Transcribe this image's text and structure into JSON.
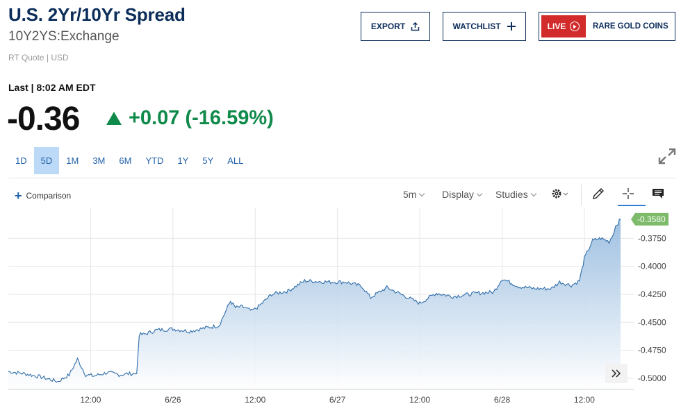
{
  "header": {
    "title": "U.S. 2Yr/10Yr Spread",
    "symbol": "10Y2YS:Exchange",
    "quote_type": "RT Quote | USD"
  },
  "buttons": {
    "export": "EXPORT",
    "watchlist": "WATCHLIST",
    "live": "LIVE",
    "live_promo": "RARE GOLD COINS"
  },
  "quote": {
    "last_label": "Last | 8:02 AM EDT",
    "price": "-0.36",
    "change": "+0.07 (-16.59%)",
    "change_color": "#0f8a4a",
    "direction_icon": "triangle-up-icon"
  },
  "ranges": [
    "1D",
    "5D",
    "1M",
    "3M",
    "6M",
    "YTD",
    "1Y",
    "5Y",
    "ALL"
  ],
  "active_range": "5D",
  "toolbar": {
    "comparison": "Comparison",
    "interval": "5m",
    "display": "Display",
    "studies": "Studies",
    "icons": [
      "settings-gear-icon",
      "draw-pencil-icon",
      "crosshair-icon",
      "comment-icon"
    ]
  },
  "chart_data": {
    "type": "area",
    "ylim": [
      -0.51,
      -0.3475
    ],
    "yticks": [
      "-0.3750",
      "-0.4000",
      "-0.4250",
      "-0.4500",
      "-0.4750",
      "-0.5000"
    ],
    "ytick_values": [
      -0.375,
      -0.4,
      -0.425,
      -0.45,
      -0.475,
      -0.5
    ],
    "xticks": [
      "12:00",
      "6/26",
      "12:00",
      "6/27",
      "12:00",
      "6/28",
      "12:00"
    ],
    "xtick_values": [
      0.5,
      1.0,
      1.5,
      2.0,
      2.5,
      3.0,
      3.5
    ],
    "x_unit": "days since start of visible window",
    "current_label": "-0.3580",
    "line_color": "#2f6da8",
    "label_color": "#7dbb6a",
    "x": [
      0.0,
      0.1,
      0.2,
      0.3,
      0.37,
      0.42,
      0.47,
      0.52,
      0.6,
      0.68,
      0.72,
      0.78,
      0.795,
      0.82,
      0.9,
      1.0,
      1.1,
      1.2,
      1.28,
      1.35,
      1.38,
      1.42,
      1.48,
      1.52,
      1.6,
      1.7,
      1.8,
      1.95,
      2.05,
      2.15,
      2.2,
      2.3,
      2.4,
      2.5,
      2.6,
      2.7,
      2.85,
      2.95,
      3.0,
      3.1,
      3.2,
      3.3,
      3.35,
      3.42,
      3.47,
      3.5,
      3.55,
      3.6,
      3.65,
      3.67,
      3.69,
      3.72
    ],
    "y": [
      -0.494,
      -0.496,
      -0.499,
      -0.503,
      -0.497,
      -0.483,
      -0.497,
      -0.498,
      -0.495,
      -0.497,
      -0.496,
      -0.496,
      -0.461,
      -0.461,
      -0.457,
      -0.456,
      -0.458,
      -0.455,
      -0.453,
      -0.431,
      -0.437,
      -0.436,
      -0.44,
      -0.436,
      -0.425,
      -0.422,
      -0.413,
      -0.414,
      -0.414,
      -0.418,
      -0.428,
      -0.419,
      -0.426,
      -0.433,
      -0.424,
      -0.427,
      -0.424,
      -0.423,
      -0.411,
      -0.418,
      -0.42,
      -0.42,
      -0.414,
      -0.417,
      -0.413,
      -0.393,
      -0.377,
      -0.375,
      -0.378,
      -0.373,
      -0.364,
      -0.358
    ]
  }
}
